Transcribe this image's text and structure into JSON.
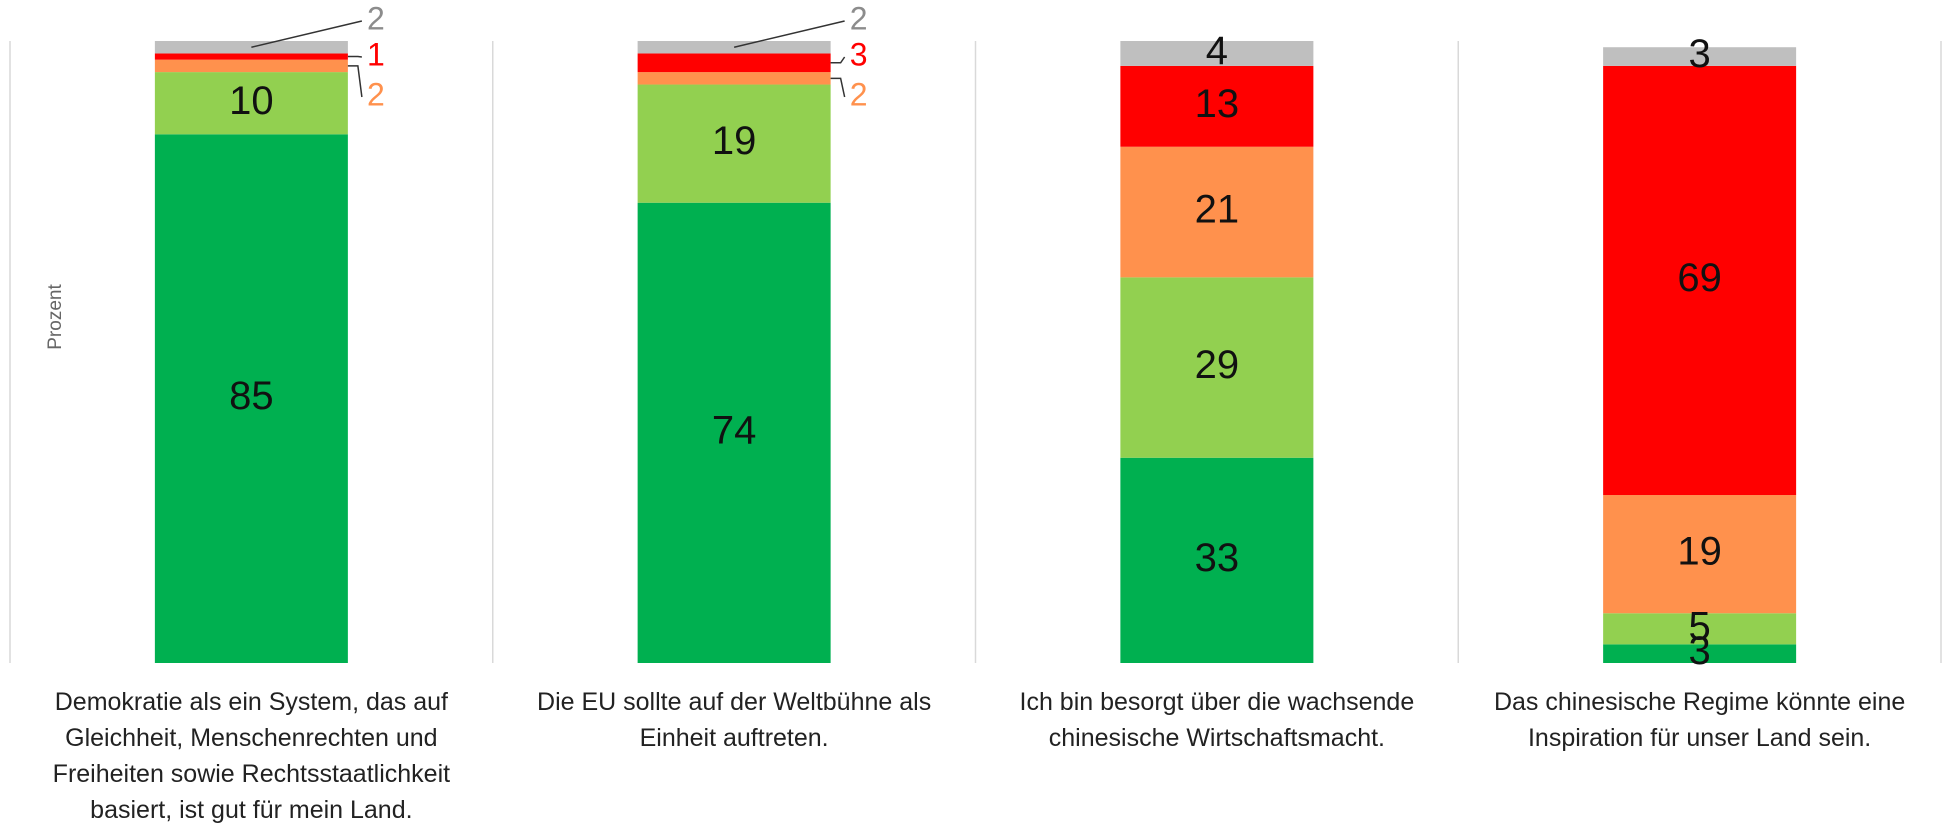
{
  "chart_data": {
    "type": "stacked_bar",
    "y_label": "Prozent",
    "categories": [
      "Demokratie als ein System, das auf Gleichheit, Menschenrechten und Freiheiten sowie Rechtsstaatlichkeit basiert, ist gut für mein Land.",
      "Die EU sollte auf der Weltbühne als Einheit auftreten.",
      "Ich bin besorgt über die wachsende chinesische Wirtschaftsmacht.",
      "Das chinesische Regime könnte eine Inspiration für unser Land sein."
    ],
    "series": [
      {
        "color": "#00b050",
        "values": [
          85,
          74,
          33,
          3
        ]
      },
      {
        "color": "#92d050",
        "values": [
          10,
          19,
          29,
          5
        ]
      },
      {
        "color": "#ff914d",
        "values": [
          2,
          2,
          21,
          19
        ]
      },
      {
        "color": "#ff0000",
        "values": [
          1,
          3,
          13,
          69
        ]
      },
      {
        "color": "#bfbfbf",
        "values": [
          2,
          2,
          4,
          3
        ]
      }
    ],
    "ylim": [
      0,
      100
    ]
  }
}
